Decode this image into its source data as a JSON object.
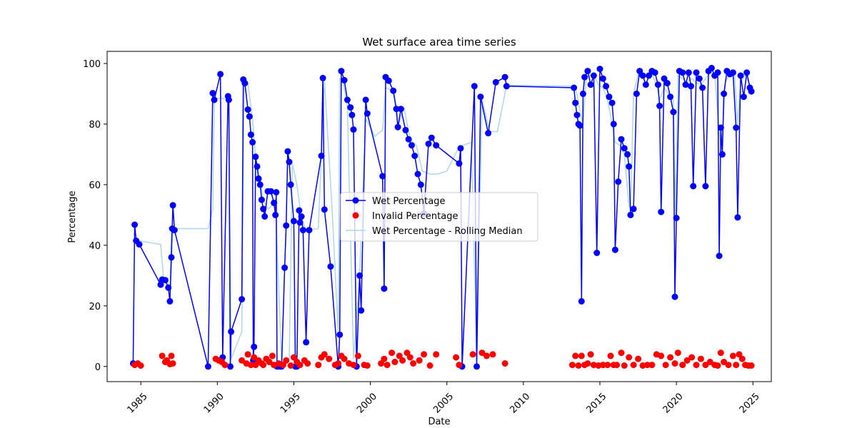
{
  "chart_data": {
    "type": "line",
    "title": "Wet surface area time series",
    "xlabel": "Date",
    "ylabel": "Percentage",
    "xlim": [
      1982.8,
      2026.2
    ],
    "ylim": [
      -5,
      104
    ],
    "xticks": [
      1985,
      1990,
      1995,
      2000,
      2005,
      2010,
      2015,
      2020,
      2025
    ],
    "yticks": [
      0,
      20,
      40,
      60,
      80,
      100
    ],
    "grid": false,
    "legend_position": "center",
    "legend": [
      "Wet Percentage",
      "Invalid Percentage",
      "Wet Percentage - Rolling Median"
    ],
    "colors": {
      "wet": "#0000ff",
      "invalid": "#ff0000",
      "median": "#add8e6",
      "axis": "#000000"
    },
    "series": [
      {
        "name": "Wet Percentage",
        "style": "line-marker",
        "x": [
          1984.5,
          1984.6,
          1984.7,
          1984.9,
          1986.3,
          1986.4,
          1986.6,
          1986.8,
          1986.9,
          1987.0,
          1987.05,
          1987.1,
          1987.2,
          1989.4,
          1989.7,
          1989.8,
          1990.2,
          1990.35,
          1990.7,
          1990.75,
          1990.85,
          1990.9,
          1991.6,
          1991.7,
          1991.8,
          1992.0,
          1992.1,
          1992.2,
          1992.3,
          1992.35,
          1992.4,
          1992.5,
          1992.6,
          1992.7,
          1992.8,
          1992.9,
          1993.0,
          1993.1,
          1993.3,
          1993.5,
          1993.7,
          1993.8,
          1993.85,
          1993.9,
          1994.1,
          1994.2,
          1994.4,
          1994.5,
          1994.6,
          1994.7,
          1994.8,
          1995.0,
          1995.1,
          1995.2,
          1995.35,
          1995.4,
          1995.5,
          1995.6,
          1995.8,
          1996.0,
          1996.8,
          1996.9,
          1997.0,
          1997.4,
          1997.9,
          1998.0,
          1998.1,
          1998.3,
          1998.5,
          1998.7,
          1998.8,
          1998.9,
          1999.1,
          1999.3,
          1999.4,
          1999.7,
          1999.8,
          2000.8,
          2000.9,
          2001.0,
          2001.2,
          2001.5,
          2001.7,
          2001.8,
          2002.0,
          2002.3,
          2002.5,
          2002.7,
          2002.9,
          2003.1,
          2003.3,
          2003.5,
          2003.8,
          2004.0,
          2004.3,
          2005.8,
          2005.9,
          2006.0,
          2006.8,
          2006.95,
          2007.2,
          2007.7,
          2008.2,
          2008.8,
          2008.9,
          2013.3,
          2013.4,
          2013.5,
          2013.6,
          2013.7,
          2013.8,
          2013.9,
          2014.0,
          2014.2,
          2014.4,
          2014.6,
          2014.8,
          2015.0,
          2015.2,
          2015.4,
          2015.6,
          2015.8,
          2015.9,
          2016.0,
          2016.2,
          2016.4,
          2016.6,
          2016.8,
          2016.9,
          2017.0,
          2017.2,
          2017.4,
          2017.6,
          2017.8,
          2018.0,
          2018.2,
          2018.4,
          2018.6,
          2018.8,
          2018.9,
          2019.0,
          2019.2,
          2019.4,
          2019.6,
          2019.8,
          2019.9,
          2020.0,
          2020.2,
          2020.4,
          2020.6,
          2020.8,
          2020.95,
          2021.1,
          2021.3,
          2021.5,
          2021.7,
          2021.9,
          2022.1,
          2022.3,
          2022.5,
          2022.7,
          2022.8,
          2022.9,
          2023.0,
          2023.1,
          2023.3,
          2023.5,
          2023.7,
          2023.9,
          2024.0,
          2024.2,
          2024.4,
          2024.6,
          2024.8,
          2024.9
        ],
        "y": [
          1,
          46.8,
          41.5,
          40.3,
          27,
          28.7,
          28.5,
          26,
          21.5,
          36,
          45.5,
          53.2,
          45,
          0,
          90.2,
          88,
          96.5,
          3,
          89.2,
          88,
          0,
          11.5,
          22.2,
          94.7,
          93.5,
          84.8,
          82.5,
          76.5,
          74,
          2,
          6.5,
          69.2,
          66,
          62,
          60,
          55,
          52,
          49.5,
          57.8,
          57.8,
          54,
          50,
          57.5,
          0,
          0,
          0,
          32.6,
          46.5,
          71,
          67.5,
          60,
          48,
          0,
          0,
          51.5,
          47.5,
          49.5,
          45,
          8,
          45,
          69.5,
          95.2,
          51.8,
          33,
          0,
          10.5,
          97.5,
          94.5,
          88,
          85.5,
          83,
          78.2,
          0,
          30,
          18.5,
          88,
          83.5,
          62.8,
          25.7,
          95.5,
          94.3,
          91,
          85,
          79,
          85,
          78,
          75,
          73,
          69.5,
          63.5,
          60,
          50.5,
          73.5,
          75.5,
          73,
          67,
          72,
          0,
          92.5,
          0,
          89,
          77,
          93.8,
          95.5,
          92.5,
          92,
          87,
          83,
          80,
          79.5,
          21.5,
          90,
          95.5,
          97.5,
          93,
          96,
          37.5,
          98.2,
          95,
          92.5,
          89,
          87,
          80,
          38.5,
          61,
          75,
          72,
          70,
          66,
          50,
          52,
          90,
          97.5,
          96,
          93,
          96,
          97.5,
          97,
          93,
          86,
          51,
          95,
          93.5,
          89,
          84,
          23,
          49,
          97.5,
          97,
          93,
          97,
          92.5,
          59.5,
          97,
          95,
          92,
          59.5,
          97.5,
          98.5,
          96,
          97,
          36.5,
          78.8,
          70,
          90,
          97.5,
          96.5,
          97,
          78.8,
          49.2,
          96,
          89,
          97,
          92,
          90.8
        ]
      },
      {
        "name": "Invalid Percentage",
        "style": "scatter",
        "x": [
          1984.6,
          1984.8,
          1985.0,
          1986.4,
          1986.6,
          1986.7,
          1986.9,
          1987.0,
          1987.1,
          1989.9,
          1990.1,
          1990.3,
          1990.5,
          1991.6,
          1991.9,
          1992.0,
          1992.2,
          1992.4,
          1992.5,
          1992.7,
          1992.9,
          1993.0,
          1993.2,
          1993.4,
          1993.6,
          1993.7,
          1994.0,
          1994.3,
          1994.5,
          1994.8,
          1995.0,
          1995.2,
          1995.4,
          1995.7,
          1995.9,
          1996.6,
          1996.8,
          1997.0,
          1997.3,
          1997.7,
          1997.9,
          1998.1,
          1998.3,
          1998.6,
          1998.9,
          1999.2,
          1999.6,
          1999.8,
          2000.7,
          2000.9,
          2001.1,
          2001.4,
          2001.6,
          2001.9,
          2002.1,
          2002.4,
          2002.6,
          2002.8,
          2003.2,
          2003.5,
          2003.9,
          2004.3,
          2005.6,
          2005.8,
          2006.7,
          2007.3,
          2007.6,
          2008.0,
          2008.8,
          2013.2,
          2013.4,
          2013.6,
          2013.8,
          2014.0,
          2014.2,
          2014.4,
          2014.6,
          2014.9,
          2015.2,
          2015.5,
          2015.7,
          2015.9,
          2016.1,
          2016.4,
          2016.6,
          2016.9,
          2017.2,
          2017.5,
          2017.8,
          2018.1,
          2018.4,
          2018.7,
          2019.0,
          2019.3,
          2019.6,
          2019.9,
          2020.1,
          2020.4,
          2020.7,
          2021.0,
          2021.3,
          2021.6,
          2021.9,
          2022.2,
          2022.5,
          2022.7,
          2022.9,
          2023.1,
          2023.4,
          2023.7,
          2023.9,
          2024.1,
          2024.3,
          2024.5,
          2024.7,
          2024.9
        ],
        "y": [
          0.5,
          1,
          0.3,
          3.5,
          1.5,
          2,
          0.8,
          3.5,
          1,
          2.5,
          2,
          1.5,
          0.5,
          2,
          1,
          4,
          0.5,
          3,
          0.5,
          2,
          1,
          0.5,
          2.5,
          1.5,
          3.5,
          0.5,
          1,
          0.5,
          2,
          0.3,
          3,
          1.5,
          0.5,
          2,
          1,
          0.5,
          3,
          4,
          2.5,
          0.5,
          1,
          3.5,
          2.5,
          1,
          0.5,
          3.5,
          0.5,
          0.3,
          1,
          2.5,
          0.5,
          4.5,
          1.5,
          3.5,
          2,
          4.5,
          3,
          1,
          2,
          4,
          0.3,
          4,
          3,
          0.5,
          4,
          4.5,
          3.5,
          4,
          1,
          0.5,
          3.5,
          0.3,
          3.5,
          0.5,
          1,
          4,
          0.5,
          0.3,
          0.5,
          0.5,
          3.5,
          0.5,
          0.5,
          4.5,
          0.3,
          3,
          0.5,
          2.5,
          0.3,
          0.5,
          0.5,
          4,
          3.5,
          0.5,
          3,
          1,
          4.5,
          0.5,
          2,
          3,
          0.5,
          2.5,
          0.5,
          1.5,
          0.5,
          0.3,
          4.5,
          1.5,
          0.5,
          3.5,
          0.5,
          4,
          2.5,
          0.5,
          0.3,
          0.3
        ]
      },
      {
        "name": "Wet Percentage - Rolling Median",
        "style": "line",
        "x": [
          1984.6,
          1984.9,
          1986.3,
          1986.5,
          1986.7,
          1986.9,
          1987.0,
          1987.1,
          1989.4,
          1989.7,
          1989.8,
          1990.3,
          1990.75,
          1990.9,
          1991.6,
          1991.75,
          1992.0,
          1992.3,
          1992.5,
          1992.8,
          1993.0,
          1993.3,
          1993.8,
          1994.2,
          1994.5,
          1994.7,
          1994.9,
          1995.2,
          1995.5,
          1995.8,
          1996.6,
          1996.8,
          1997.0,
          1997.5,
          1997.9,
          1998.0,
          1998.2,
          1998.5,
          1998.9,
          1999.3,
          1999.7,
          2000.3,
          2000.8,
          2001.0,
          2001.5,
          2001.8,
          2002.2,
          2002.6,
          2003.0,
          2003.4,
          2003.9,
          2004.4,
          2005.0,
          2005.8,
          2006.6,
          2006.95,
          2007.3,
          2007.8,
          2008.3,
          2008.9,
          2013.3,
          2013.5,
          2013.7,
          2013.9,
          2014.1,
          2014.4,
          2014.7,
          2014.9,
          2015.2,
          2015.5,
          2015.8,
          2016.0,
          2016.3,
          2016.6,
          2016.9,
          2017.0,
          2017.2,
          2017.5,
          2017.8,
          2018.1,
          2018.4,
          2018.7,
          2018.9,
          2019.2,
          2019.5,
          2019.8,
          2019.95,
          2020.1,
          2020.4,
          2020.7,
          2021.0,
          2021.3,
          2021.6,
          2021.9,
          2022.2,
          2022.5,
          2022.8,
          2022.95,
          2023.2,
          2023.5,
          2023.8,
          2024.0,
          2024.2,
          2024.5,
          2024.8,
          2024.9
        ],
        "y": [
          41.5,
          41.5,
          40.3,
          28.5,
          28.5,
          26,
          45.5,
          45.5,
          45.5,
          52,
          88.5,
          88.5,
          88,
          2.5,
          11.5,
          93.5,
          93.5,
          82,
          68.5,
          62,
          55,
          52,
          54,
          1,
          1,
          2,
          67,
          60,
          49,
          45,
          45.5,
          69.5,
          94.5,
          52,
          11,
          95,
          94.5,
          85.5,
          2.5,
          30,
          81.8,
          76,
          78,
          92,
          91,
          79,
          85.5,
          75,
          73,
          64.5,
          63.5,
          63.5,
          64.5,
          72.5,
          74,
          2,
          88,
          77.5,
          77.5,
          92.8,
          92.5,
          90,
          84,
          80,
          95.5,
          96,
          95,
          93,
          92,
          88,
          80,
          74,
          73,
          70,
          53,
          52,
          90,
          96.5,
          95,
          96,
          96.5,
          93,
          88,
          92,
          90,
          88,
          50,
          96,
          95,
          94,
          95,
          93.5,
          93,
          95,
          97,
          96.5,
          77,
          72,
          94,
          96.5,
          96.5,
          80,
          94,
          96,
          93,
          92
        ]
      }
    ]
  }
}
